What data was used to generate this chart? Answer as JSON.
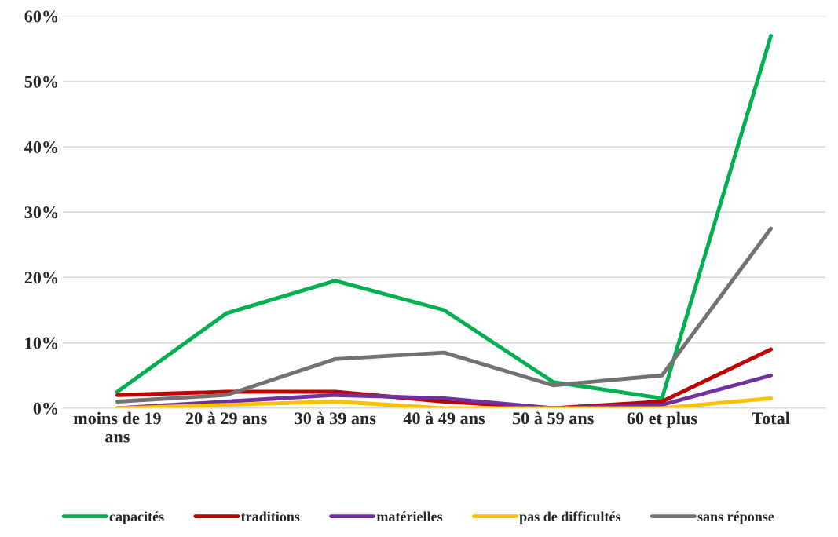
{
  "chart_data": {
    "type": "line",
    "categories": [
      "moins de 19 ans",
      "20 à 29 ans",
      "30 à 39 ans",
      "40 à 49 ans",
      "50 à 59 ans",
      "60 et plus",
      "Total"
    ],
    "series": [
      {
        "name": "capacités",
        "color": "#00b050",
        "values": [
          2.5,
          14.5,
          19.5,
          15,
          4,
          1.5,
          57
        ]
      },
      {
        "name": "traditions",
        "color": "#c00000",
        "values": [
          2,
          2.5,
          2.5,
          1,
          0,
          1,
          9
        ]
      },
      {
        "name": "matérielles",
        "color": "#7030a0",
        "values": [
          0,
          1,
          2,
          1.5,
          0,
          0.5,
          5
        ]
      },
      {
        "name": "pas de difficultés",
        "color": "#ffc000",
        "values": [
          0,
          0.5,
          1,
          0,
          0,
          0,
          1.5
        ]
      },
      {
        "name": "sans réponse",
        "color": "#767171",
        "values": [
          1,
          2,
          7.5,
          8.5,
          3.5,
          5,
          27.5
        ]
      }
    ],
    "ylim": [
      0,
      60
    ],
    "yticks": [
      {
        "value": 0,
        "label": "0%"
      },
      {
        "value": 10,
        "label": "10%"
      },
      {
        "value": 20,
        "label": "20%"
      },
      {
        "value": 30,
        "label": "30%"
      },
      {
        "value": 40,
        "label": "40%"
      },
      {
        "value": 50,
        "label": "50%"
      },
      {
        "value": 60,
        "label": "60%"
      }
    ],
    "grid": "y",
    "legend": "bottom",
    "marker": "none",
    "line_style": "solid"
  }
}
